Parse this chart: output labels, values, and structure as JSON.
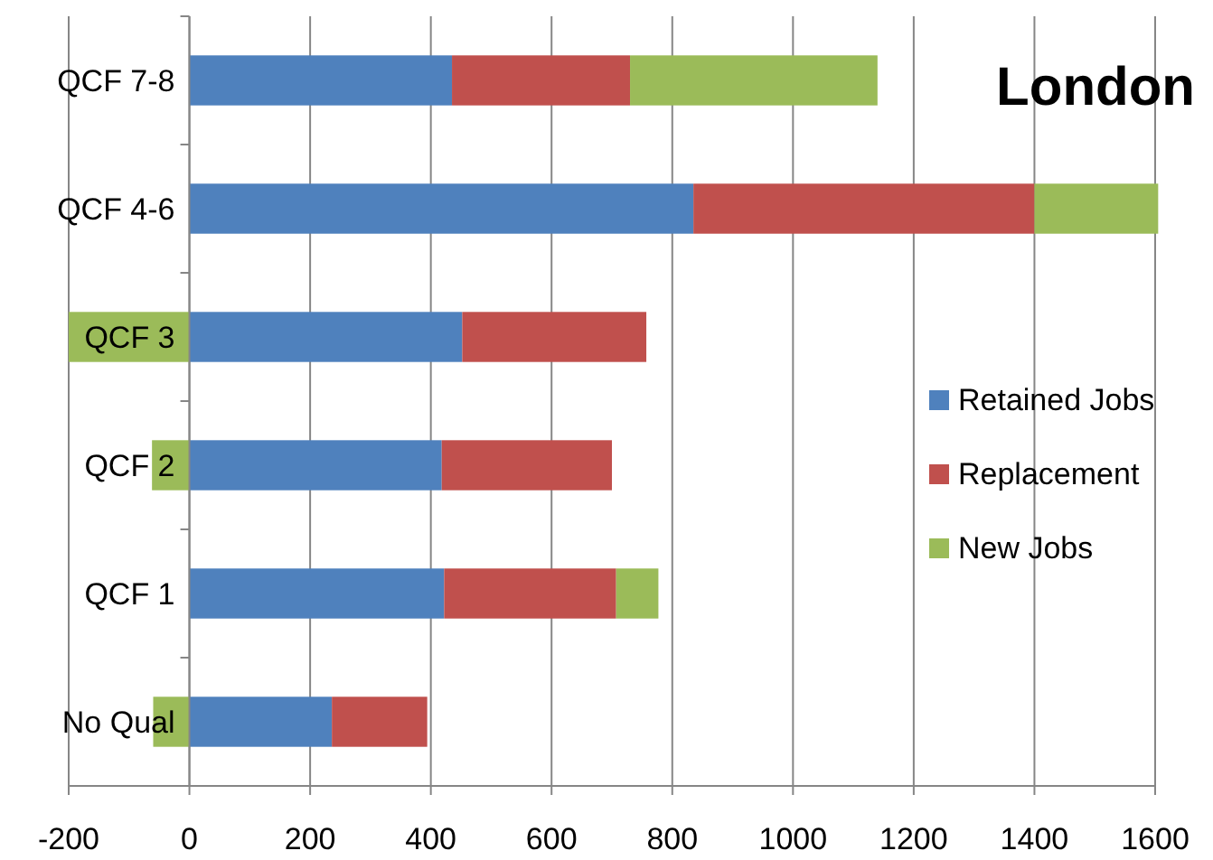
{
  "chart_data": {
    "type": "bar",
    "orientation": "horizontal",
    "stacked": true,
    "title": "London",
    "categories": [
      "QCF 7-8",
      "QCF 4-6",
      "QCF 3",
      "QCF 2",
      "QCF 1",
      "No Qual"
    ],
    "series": [
      {
        "name": "Retained Jobs",
        "color": "#4f81bd",
        "values": [
          435,
          835,
          452,
          418,
          422,
          236
        ]
      },
      {
        "name": "Replacement",
        "color": "#c0504d",
        "values": [
          295,
          565,
          305,
          282,
          285,
          158
        ]
      },
      {
        "name": "New Jobs",
        "color": "#9bbb59",
        "values": [
          410,
          205,
          -200,
          -62,
          70,
          -60
        ]
      }
    ],
    "xlim": [
      -200,
      1600
    ],
    "xticks": [
      -200,
      0,
      200,
      400,
      600,
      800,
      1000,
      1200,
      1400,
      1600
    ],
    "grid": "x",
    "legend": "right"
  }
}
